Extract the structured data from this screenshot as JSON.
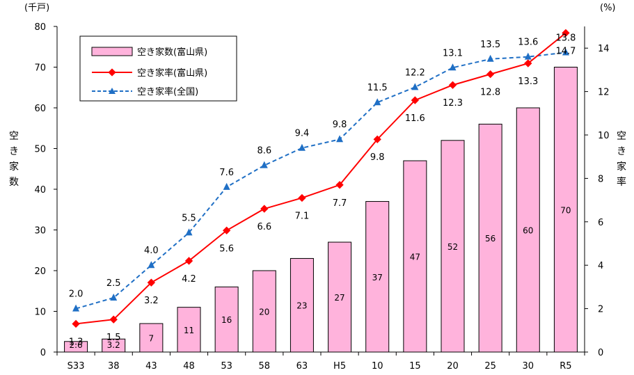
{
  "chart_data": {
    "type": "bar",
    "categories": [
      "S33",
      "38",
      "43",
      "48",
      "53",
      "58",
      "63",
      "H5",
      "10",
      "15",
      "20",
      "25",
      "30",
      "R5"
    ],
    "series": [
      {
        "name": "空き家数(富山県)",
        "type": "bar",
        "axis": "left",
        "values": [
          2.6,
          3.2,
          7,
          11,
          16,
          20,
          23,
          27,
          37,
          47,
          52,
          56,
          60,
          70
        ],
        "labels": [
          "2.6",
          "3.2",
          "7",
          "11",
          "16",
          "20",
          "23",
          "27",
          "37",
          "47",
          "52",
          "56",
          "60",
          "70"
        ],
        "color": "#ffb3dc"
      },
      {
        "name": "空き家率(富山県)",
        "type": "line",
        "axis": "right",
        "values": [
          1.3,
          1.5,
          3.2,
          4.2,
          5.6,
          6.6,
          7.1,
          7.7,
          9.8,
          11.6,
          12.3,
          12.8,
          13.3,
          14.7
        ],
        "labels": [
          "1.3",
          "1.5",
          "3.2",
          "4.2",
          "5.6",
          "6.6",
          "7.1",
          "7.7",
          "9.8",
          "11.6",
          "12.3",
          "12.8",
          "13.3",
          "14.7"
        ],
        "color": "#ff0000"
      },
      {
        "name": "空き家率(全国)",
        "type": "line",
        "axis": "right",
        "values": [
          2.0,
          2.5,
          4.0,
          5.5,
          7.6,
          8.6,
          9.4,
          9.8,
          11.5,
          12.2,
          13.1,
          13.5,
          13.6,
          13.8
        ],
        "labels": [
          "2.0",
          "2.5",
          "4.0",
          "5.5",
          "7.6",
          "8.6",
          "9.4",
          "9.8",
          "11.5",
          "12.2",
          "13.1",
          "13.5",
          "13.6",
          "13.8"
        ],
        "color": "#1f6fc5"
      }
    ],
    "y_left": {
      "label": "空き家数",
      "unit": "(千戸)",
      "ylim": [
        0,
        80
      ],
      "ticks": [
        "0",
        "10",
        "20",
        "30",
        "40",
        "50",
        "60",
        "70",
        "80"
      ]
    },
    "y_right": {
      "label": "空き家率",
      "unit": "(%)",
      "ylim": [
        0,
        15
      ],
      "ticks": [
        "0",
        "2",
        "4",
        "6",
        "8",
        "10",
        "12",
        "14"
      ]
    },
    "legend": {
      "placement": "top-left"
    },
    "grid": false
  }
}
